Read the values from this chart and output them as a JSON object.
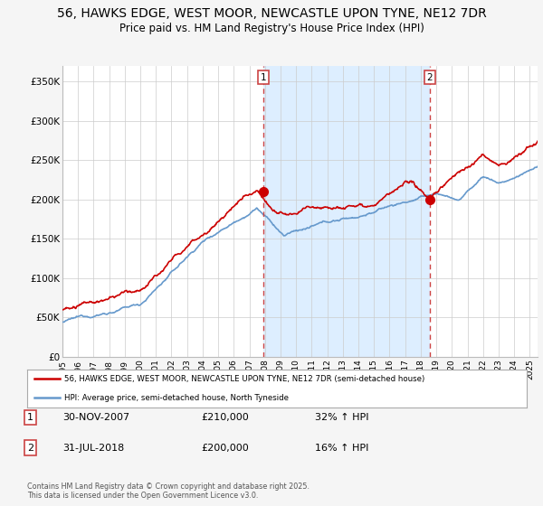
{
  "title": "56, HAWKS EDGE, WEST MOOR, NEWCASTLE UPON TYNE, NE12 7DR",
  "subtitle": "Price paid vs. HM Land Registry's House Price Index (HPI)",
  "title_fontsize": 10,
  "subtitle_fontsize": 8.5,
  "bg_color": "#f5f5f5",
  "plot_bg_color": "#ffffff",
  "ylim": [
    0,
    370000
  ],
  "yticks": [
    0,
    50000,
    100000,
    150000,
    200000,
    250000,
    300000,
    350000
  ],
  "ytick_labels": [
    "£0",
    "£50K",
    "£100K",
    "£150K",
    "£200K",
    "£250K",
    "£300K",
    "£350K"
  ],
  "grid_color": "#cccccc",
  "red_color": "#cc0000",
  "blue_color": "#6699cc",
  "shade_color": "#ddeeff",
  "vline_color": "#cc4444",
  "marker1_x": 2007.92,
  "marker1_y": 210000,
  "marker2_x": 2018.58,
  "marker2_y": 200000,
  "legend_label_red": "56, HAWKS EDGE, WEST MOOR, NEWCASTLE UPON TYNE, NE12 7DR (semi-detached house)",
  "legend_label_blue": "HPI: Average price, semi-detached house, North Tyneside",
  "annotation1_date": "30-NOV-2007",
  "annotation1_price": "£210,000",
  "annotation1_hpi": "32% ↑ HPI",
  "annotation2_date": "31-JUL-2018",
  "annotation2_price": "£200,000",
  "annotation2_hpi": "16% ↑ HPI",
  "footnote": "Contains HM Land Registry data © Crown copyright and database right 2025.\nThis data is licensed under the Open Government Licence v3.0.",
  "xmin": 1995,
  "xmax": 2025.5
}
